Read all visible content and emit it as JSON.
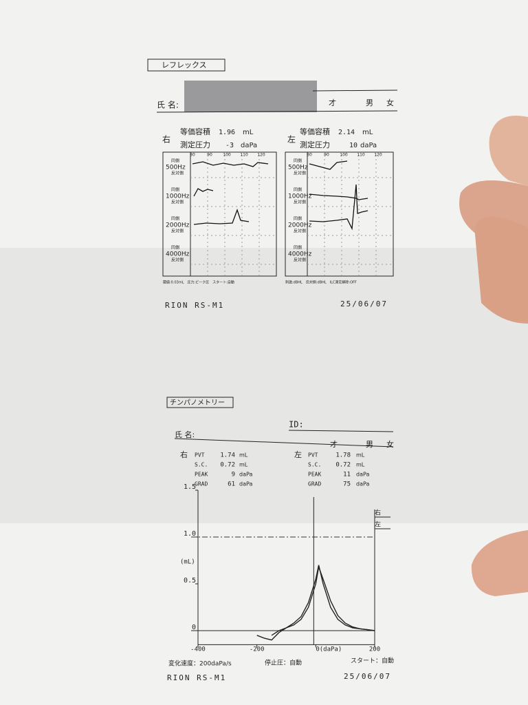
{
  "reflex": {
    "title": "レフレックス",
    "name_label": "氏 名:",
    "age": "才",
    "male": "男",
    "female": "女",
    "right": {
      "side": "右",
      "volume_label": "等価容積",
      "volume": 1.96,
      "volume_unit": "mL",
      "pressure_label": "測定圧力",
      "pressure": -3,
      "pressure_unit": "daPa",
      "footer": "閾値:0.03mL　圧力:ピーク圧　スタート:自動"
    },
    "left": {
      "side": "左",
      "volume_label": "等価容積",
      "volume": 2.14,
      "volume_unit": "mL",
      "pressure_label": "測定圧力",
      "pressure": 10,
      "pressure_unit": "daPa",
      "footer": "刺激:dBHL　反対側:dBHL　ILC測定解除:OFF"
    },
    "scale": [
      80,
      90,
      100,
      110,
      120
    ],
    "rows": [
      {
        "ipsi": "同側",
        "freq": "500Hz",
        "contra": "反対側"
      },
      {
        "ipsi": "同側",
        "freq": "1000Hz",
        "contra": "反対側"
      },
      {
        "ipsi": "同側",
        "freq": "2000Hz",
        "contra": "反対側"
      },
      {
        "ipsi": "同側",
        "freq": "4000Hz",
        "contra": "反対側"
      }
    ],
    "device": "RION RS-M1",
    "date": "25/06/07"
  },
  "tympanometry": {
    "title": "チンパノメトリー",
    "id_label": "ID:",
    "name_label": "氏 名:",
    "age": "才",
    "male": "男",
    "female": "女",
    "right": {
      "side": "右",
      "rows": [
        [
          "PVT",
          1.74,
          "mL"
        ],
        [
          "S.C.",
          0.72,
          "mL"
        ],
        [
          "PEAK",
          9,
          "daPa"
        ],
        [
          "GRAD",
          61,
          "daPa"
        ]
      ]
    },
    "left": {
      "side": "左",
      "rows": [
        [
          "PVT",
          1.78,
          "mL"
        ],
        [
          "S.C.",
          0.72,
          "mL"
        ],
        [
          "PEAK",
          11,
          "daPa"
        ],
        [
          "GRAD",
          75,
          "daPa"
        ]
      ]
    },
    "rate": "変化速度：200daPa/s",
    "stop": "停止圧：自動",
    "start": "スタート：自動",
    "device": "RION RS-M1",
    "date": "25/06/07"
  },
  "chart_data": {
    "type": "line",
    "y_label": "(mL)",
    "x": [
      -200,
      -175,
      -150,
      -125,
      -100,
      -75,
      -50,
      -25,
      0,
      10,
      25,
      50,
      75,
      100,
      125,
      150,
      175,
      200
    ],
    "series": [
      {
        "name": "右",
        "color": "#222222",
        "values": [
          -0.05,
          -0.08,
          -0.1,
          -0.02,
          0.03,
          0.08,
          0.15,
          0.3,
          0.55,
          0.7,
          0.5,
          0.25,
          0.12,
          0.06,
          0.03,
          0.02,
          0.01,
          0
        ]
      },
      {
        "name": "左",
        "color": "#222222",
        "values": [
          null,
          null,
          -0.05,
          0,
          0.03,
          0.06,
          0.12,
          0.25,
          0.5,
          0.68,
          0.55,
          0.32,
          0.16,
          0.08,
          0.04,
          0.02,
          0.01,
          0
        ]
      }
    ],
    "xlim": [
      -400,
      200
    ],
    "ylim": [
      -0.15,
      1.5
    ],
    "xticks": [
      -400,
      -200,
      {
        "value": 0,
        "label": "0(daPa)"
      },
      200
    ],
    "yticks": [
      0,
      0.5,
      {
        "value": 1,
        "label": "1.0"
      },
      1.5
    ],
    "reference_line": 1
  }
}
